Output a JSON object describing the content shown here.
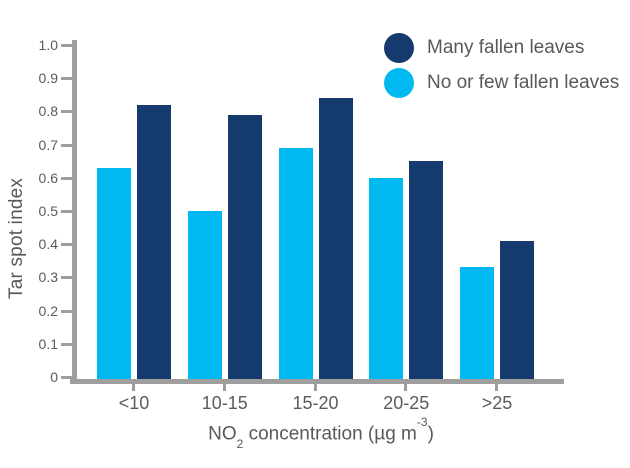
{
  "chart_data": {
    "type": "bar",
    "title": "",
    "categories": [
      "<10",
      "10-15",
      "15-20",
      "20-25",
      ">25"
    ],
    "series": [
      {
        "name": "No or few fallen leaves",
        "color": "#00b9f0",
        "values": [
          0.63,
          0.5,
          0.69,
          0.6,
          0.33
        ]
      },
      {
        "name": "Many fallen leaves",
        "color": "#143a6e",
        "values": [
          0.82,
          0.79,
          0.84,
          0.65,
          0.41
        ]
      }
    ],
    "legend": [
      {
        "label": "Many fallen leaves",
        "color": "#143a6e"
      },
      {
        "label": "No or few fallen leaves",
        "color": "#00b9f0"
      }
    ],
    "ylabel": "Tar spot index",
    "xlabel": {
      "pre": "NO",
      "sub": "2",
      "mid": " concentration (µg m",
      "sup": "-3",
      "post": ")"
    },
    "ylim": [
      0,
      1.0
    ],
    "yticks": [
      "0",
      "0.1",
      "0.2",
      "0.3",
      "0.4",
      "0.5",
      "0.6",
      "0.7",
      "0.8",
      "0.9",
      "1.0"
    ],
    "grid": false,
    "legend_position": "top-right",
    "axis_color": "#9e9e9e",
    "text_color": "#58595b",
    "background_color": "#ffffff"
  }
}
